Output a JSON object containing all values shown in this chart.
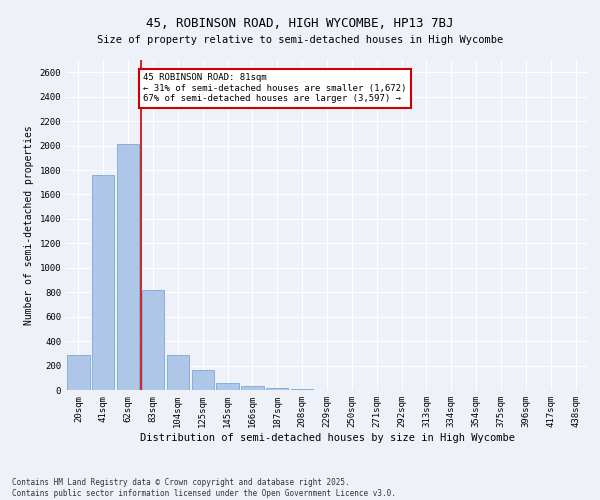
{
  "title": "45, ROBINSON ROAD, HIGH WYCOMBE, HP13 7BJ",
  "subtitle": "Size of property relative to semi-detached houses in High Wycombe",
  "xlabel": "Distribution of semi-detached houses by size in High Wycombe",
  "ylabel": "Number of semi-detached properties",
  "bar_labels": [
    "20sqm",
    "41sqm",
    "62sqm",
    "83sqm",
    "104sqm",
    "125sqm",
    "145sqm",
    "166sqm",
    "187sqm",
    "208sqm",
    "229sqm",
    "250sqm",
    "271sqm",
    "292sqm",
    "313sqm",
    "334sqm",
    "354sqm",
    "375sqm",
    "396sqm",
    "417sqm",
    "438sqm"
  ],
  "bar_values": [
    290,
    1760,
    2010,
    820,
    290,
    160,
    60,
    30,
    20,
    10,
    0,
    0,
    0,
    0,
    0,
    0,
    0,
    0,
    0,
    0,
    0
  ],
  "bar_color": "#aec6e8",
  "bar_edge_color": "#6a9fd0",
  "vline_x_index": 2.5,
  "vline_color": "#cc0000",
  "annotation_text": "45 ROBINSON ROAD: 81sqm\n← 31% of semi-detached houses are smaller (1,672)\n67% of semi-detached houses are larger (3,597) →",
  "annotation_box_color": "#cc0000",
  "ylim": [
    0,
    2700
  ],
  "yticks": [
    0,
    200,
    400,
    600,
    800,
    1000,
    1200,
    1400,
    1600,
    1800,
    2000,
    2200,
    2400,
    2600
  ],
  "bg_color": "#eef2f8",
  "footer_text": "Contains HM Land Registry data © Crown copyright and database right 2025.\nContains public sector information licensed under the Open Government Licence v3.0.",
  "title_fontsize": 9,
  "subtitle_fontsize": 7.5,
  "xlabel_fontsize": 7.5,
  "ylabel_fontsize": 7,
  "tick_fontsize": 6.5,
  "annotation_fontsize": 6.5,
  "footer_fontsize": 5.5
}
